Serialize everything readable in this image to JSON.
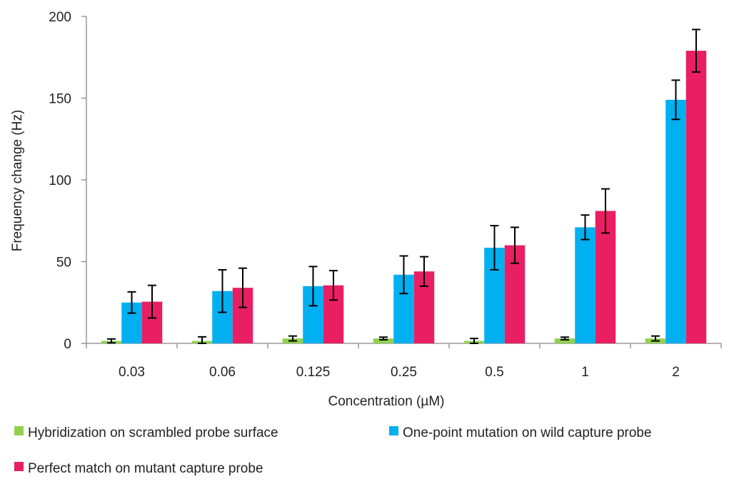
{
  "chart_data": {
    "type": "bar",
    "title": "",
    "xlabel": "Concentration (µM)",
    "ylabel": "Frequency change (Hz)",
    "ylim": [
      0,
      200
    ],
    "yticks": [
      0,
      50,
      100,
      150,
      200
    ],
    "categories": [
      "0.03",
      "0.06",
      "0.125",
      "0.25",
      "0.5",
      "1",
      "2"
    ],
    "grid": false,
    "legend_position": "bottom",
    "error_bars": true,
    "series": [
      {
        "name": "Hybridization on scrambled probe surface",
        "color": "#92d050",
        "values": [
          1.5,
          1.5,
          3,
          3,
          1.5,
          3,
          3
        ],
        "errors": [
          1.2,
          2.5,
          1.5,
          0.8,
          1.5,
          0.8,
          1.5
        ]
      },
      {
        "name": "One-point mutation on wild capture probe",
        "color": "#00b0f0",
        "values": [
          25,
          32,
          35,
          42,
          58.5,
          71,
          149
        ],
        "errors": [
          6.5,
          13,
          12,
          11.5,
          13.5,
          7.5,
          12
        ]
      },
      {
        "name": "Perfect match on mutant capture probe",
        "color": "#e91e63",
        "values": [
          25.5,
          34,
          35.5,
          44,
          60,
          81,
          179
        ],
        "errors": [
          10,
          12,
          9,
          9,
          11,
          13.5,
          13
        ]
      }
    ]
  }
}
